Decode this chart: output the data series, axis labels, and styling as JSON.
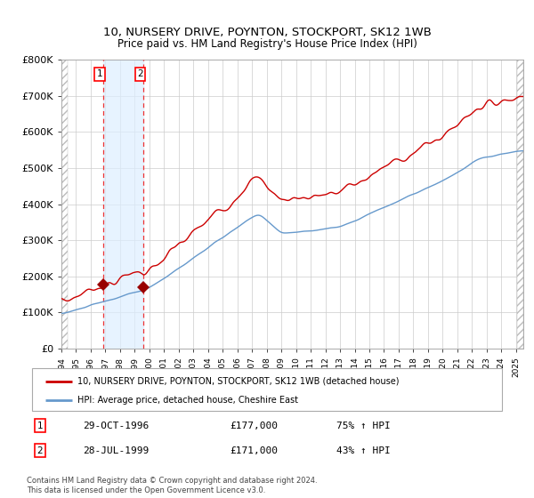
{
  "title": "10, NURSERY DRIVE, POYNTON, STOCKPORT, SK12 1WB",
  "subtitle": "Price paid vs. HM Land Registry's House Price Index (HPI)",
  "legend_line1": "10, NURSERY DRIVE, POYNTON, STOCKPORT, SK12 1WB (detached house)",
  "legend_line2": "HPI: Average price, detached house, Cheshire East",
  "annotation1_date": "29-OCT-1996",
  "annotation1_price": "£177,000",
  "annotation1_hpi": "75% ↑ HPI",
  "annotation2_date": "28-JUL-1999",
  "annotation2_price": "£171,000",
  "annotation2_hpi": "43% ↑ HPI",
  "sale1_year": 1996.83,
  "sale1_value": 177000,
  "sale2_year": 1999.57,
  "sale2_value": 171000,
  "ylabel_ticks": [
    "£0",
    "£100K",
    "£200K",
    "£300K",
    "£400K",
    "£500K",
    "£600K",
    "£700K",
    "£800K"
  ],
  "ylabel_values": [
    0,
    100000,
    200000,
    300000,
    400000,
    500000,
    600000,
    700000,
    800000
  ],
  "red_line_color": "#cc0000",
  "blue_line_color": "#6699cc",
  "marker_color": "#990000",
  "vline_color": "#ee3333",
  "shade_color": "#ddeeff",
  "grid_color": "#cccccc",
  "hatch_color": "#bbbbbb",
  "footnote": "Contains HM Land Registry data © Crown copyright and database right 2024.\nThis data is licensed under the Open Government Licence v3.0."
}
